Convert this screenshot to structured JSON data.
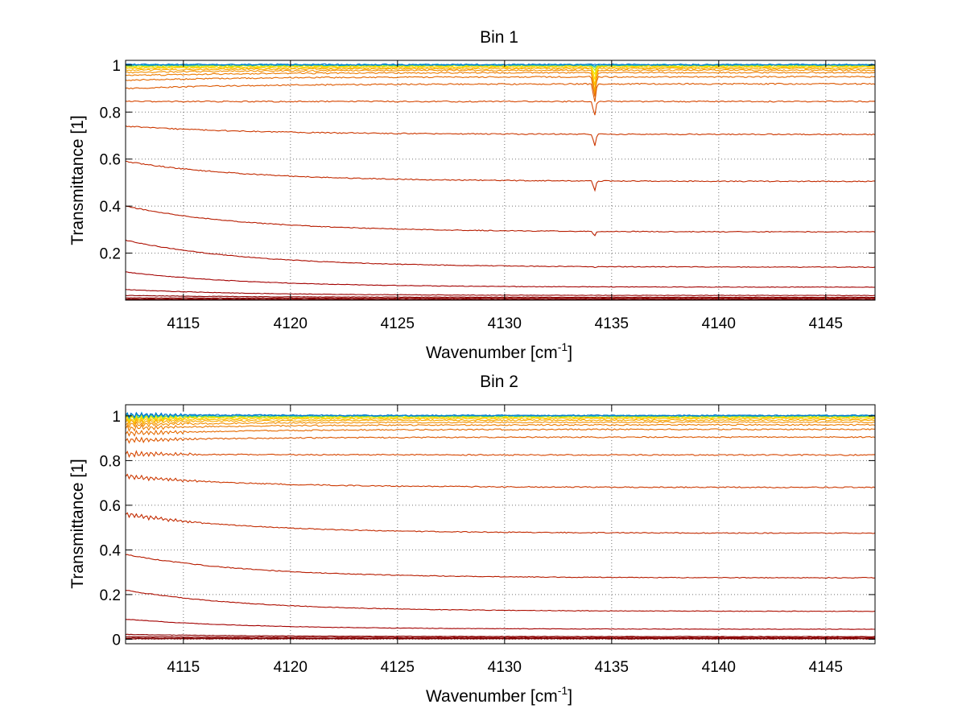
{
  "chart_data": [
    {
      "type": "line",
      "title": "Bin 1",
      "xlabel": "Wavenumber [cm",
      "xlabel_sup": "-1",
      "xlabel_close": "]",
      "ylabel": "Transmittance [1]",
      "xlim": [
        4112.3,
        4147.3
      ],
      "ylim": [
        0,
        1.02
      ],
      "xticks": [
        4115,
        4120,
        4125,
        4130,
        4135,
        4140,
        4145
      ],
      "yticks": [
        0.2,
        0.4,
        0.6,
        0.8,
        1
      ],
      "ytick_labels": [
        "0.2",
        "0.4",
        "0.6",
        "0.8",
        "1"
      ],
      "grid": true,
      "dip_center": 4134.2,
      "series": [
        {
          "start": 0.002,
          "end": 0.002,
          "dip": 0.0,
          "color": "#800000"
        },
        {
          "start": 0.005,
          "end": 0.004,
          "dip": 0.0,
          "color": "#800000"
        },
        {
          "start": 0.01,
          "end": 0.008,
          "dip": 0.0,
          "color": "#8b0000"
        },
        {
          "start": 0.02,
          "end": 0.012,
          "dip": 0.0,
          "color": "#8b0000"
        },
        {
          "start": 0.045,
          "end": 0.02,
          "dip": 0.0,
          "color": "#990000"
        },
        {
          "start": 0.12,
          "end": 0.055,
          "dip": 0.0,
          "color": "#a30000"
        },
        {
          "start": 0.255,
          "end": 0.14,
          "dip": 0.005,
          "color": "#ad0e00"
        },
        {
          "start": 0.4,
          "end": 0.29,
          "dip": 0.02,
          "color": "#b71c00"
        },
        {
          "start": 0.59,
          "end": 0.505,
          "dip": 0.04,
          "color": "#c22a00"
        },
        {
          "start": 0.74,
          "end": 0.705,
          "dip": 0.05,
          "color": "#cc3800"
        },
        {
          "start": 0.845,
          "end": 0.845,
          "dip": 0.06,
          "color": "#d64600"
        },
        {
          "start": 0.9,
          "end": 0.92,
          "dip": 0.08,
          "color": "#dd5800"
        },
        {
          "start": 0.935,
          "end": 0.95,
          "dip": 0.09,
          "color": "#e56a00"
        },
        {
          "start": 0.955,
          "end": 0.968,
          "dip": 0.1,
          "color": "#ec7c00"
        },
        {
          "start": 0.968,
          "end": 0.978,
          "dip": 0.1,
          "color": "#f39000"
        },
        {
          "start": 0.978,
          "end": 0.985,
          "dip": 0.1,
          "color": "#f8a800"
        },
        {
          "start": 0.985,
          "end": 0.99,
          "dip": 0.08,
          "color": "#fcc000"
        },
        {
          "start": 0.99,
          "end": 0.994,
          "dip": 0.06,
          "color": "#ffd800"
        },
        {
          "start": 0.994,
          "end": 0.997,
          "dip": 0.04,
          "color": "#e8e800"
        },
        {
          "start": 0.997,
          "end": 0.999,
          "dip": 0.02,
          "color": "#aadd22"
        },
        {
          "start": 0.999,
          "end": 1.0,
          "dip": 0.01,
          "color": "#44cc88"
        },
        {
          "start": 1.001,
          "end": 1.001,
          "dip": 0.005,
          "color": "#00aacc"
        },
        {
          "start": 1.002,
          "end": 1.002,
          "dip": 0.0,
          "color": "#0070d0"
        }
      ]
    },
    {
      "type": "line",
      "title": "Bin 2",
      "xlabel": "Wavenumber [cm",
      "xlabel_sup": "-1",
      "xlabel_close": "]",
      "ylabel": "Transmittance [1]",
      "xlim": [
        4112.3,
        4147.3
      ],
      "ylim": [
        -0.02,
        1.05
      ],
      "xticks": [
        4115,
        4120,
        4125,
        4130,
        4135,
        4140,
        4145
      ],
      "yticks": [
        0,
        0.2,
        0.4,
        0.6,
        0.8,
        1
      ],
      "ytick_labels": [
        "0",
        "0.2",
        "0.4",
        "0.6",
        "0.8",
        "1"
      ],
      "grid": true,
      "dip_center": 4134.2,
      "series": [
        {
          "start": 0.002,
          "end": 0.002,
          "dip": 0.0,
          "color": "#800000"
        },
        {
          "start": 0.006,
          "end": 0.004,
          "dip": 0.0,
          "color": "#800000"
        },
        {
          "start": 0.012,
          "end": 0.008,
          "dip": 0.0,
          "color": "#8b0000"
        },
        {
          "start": 0.022,
          "end": 0.012,
          "dip": 0.0,
          "color": "#8b0000"
        },
        {
          "start": 0.09,
          "end": 0.045,
          "dip": 0.0,
          "color": "#a30000"
        },
        {
          "start": 0.22,
          "end": 0.125,
          "dip": 0.0,
          "color": "#ad0e00"
        },
        {
          "start": 0.38,
          "end": 0.275,
          "dip": 0.0,
          "color": "#b71c00"
        },
        {
          "start": 0.56,
          "end": 0.475,
          "dip": 0.0,
          "color": "#c22a00"
        },
        {
          "start": 0.73,
          "end": 0.68,
          "dip": 0.0,
          "color": "#cc3800"
        },
        {
          "start": 0.83,
          "end": 0.825,
          "dip": 0.0,
          "color": "#d64600"
        },
        {
          "start": 0.89,
          "end": 0.905,
          "dip": 0.0,
          "color": "#dd5800"
        },
        {
          "start": 0.92,
          "end": 0.94,
          "dip": 0.0,
          "color": "#e56a00"
        },
        {
          "start": 0.945,
          "end": 0.96,
          "dip": 0.0,
          "color": "#ec7c00"
        },
        {
          "start": 0.96,
          "end": 0.972,
          "dip": 0.0,
          "color": "#f39000"
        },
        {
          "start": 0.972,
          "end": 0.981,
          "dip": 0.0,
          "color": "#f8a800"
        },
        {
          "start": 0.981,
          "end": 0.988,
          "dip": 0.0,
          "color": "#fcc000"
        },
        {
          "start": 0.988,
          "end": 0.993,
          "dip": 0.0,
          "color": "#ffd800"
        },
        {
          "start": 0.993,
          "end": 0.996,
          "dip": 0.0,
          "color": "#e8e800"
        },
        {
          "start": 0.997,
          "end": 0.998,
          "dip": 0.0,
          "color": "#aadd22"
        },
        {
          "start": 1.0,
          "end": 1.0,
          "dip": 0.0,
          "color": "#44cc88"
        },
        {
          "start": 1.003,
          "end": 1.001,
          "dip": 0.0,
          "color": "#00aacc"
        },
        {
          "start": 1.006,
          "end": 1.002,
          "dip": 0.0,
          "color": "#0070d0"
        }
      ]
    }
  ]
}
